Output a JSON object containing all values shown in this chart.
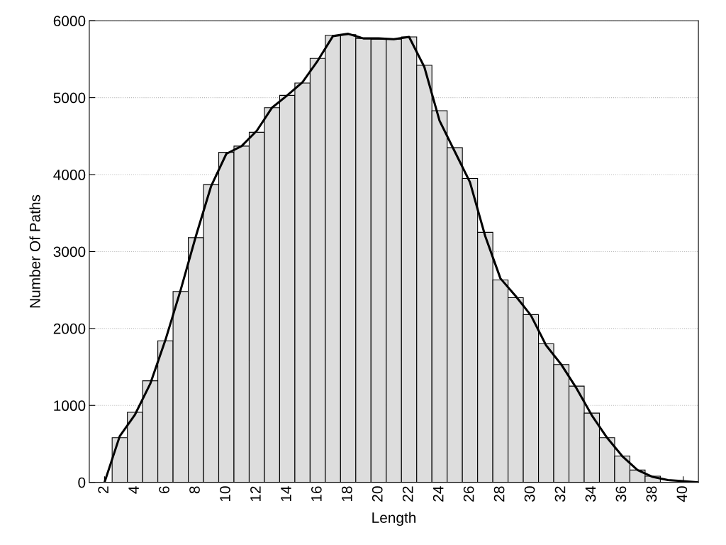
{
  "chart_data": {
    "type": "histogram",
    "xlabel": "Length",
    "ylabel": "Number Of Paths",
    "bins": [
      2.5,
      3.5,
      4.5,
      5.5,
      6.5,
      7.5,
      8.5,
      9.5,
      10.5,
      11.5,
      12.5,
      13.5,
      14.5,
      15.5,
      16.5,
      17.5,
      18.5,
      19.5,
      20.5,
      21.5,
      22.5,
      23.5,
      24.5,
      25.5,
      26.5,
      27.5,
      28.5,
      29.5,
      30.5,
      31.5,
      32.5,
      33.5,
      34.5,
      35.5,
      36.5,
      37.5,
      38.5,
      39.5,
      40.5
    ],
    "values": [
      580,
      910,
      1320,
      1840,
      2480,
      3180,
      3870,
      4290,
      4370,
      4550,
      4870,
      5030,
      5190,
      5510,
      5810,
      5820,
      5770,
      5760,
      5760,
      5790,
      5420,
      4830,
      4350,
      3950,
      3250,
      2630,
      2400,
      2180,
      1800,
      1530,
      1250,
      900,
      580,
      340,
      160,
      80,
      null,
      null
    ],
    "color": "#dddddd",
    "series": [
      {
        "type": "line",
        "color": "#000000",
        "x": [
          2,
          3,
          4,
          5,
          6,
          7,
          8,
          9,
          10,
          11,
          12,
          13,
          14,
          15,
          16,
          17,
          18,
          19,
          20,
          21,
          22,
          23,
          24,
          25,
          26,
          27,
          28,
          29,
          30,
          31,
          32,
          33,
          34,
          35,
          36,
          37,
          38,
          39,
          40,
          41
        ],
        "values": [
          0,
          600,
          880,
          1280,
          1850,
          2500,
          3200,
          3850,
          4270,
          4370,
          4570,
          4870,
          5030,
          5200,
          5480,
          5800,
          5830,
          5770,
          5770,
          5760,
          5790,
          5400,
          4700,
          4300,
          3900,
          3200,
          2650,
          2420,
          2170,
          1780,
          1530,
          1220,
          870,
          580,
          340,
          160,
          70,
          30,
          15,
          0
        ]
      }
    ],
    "xlim": [
      1,
      41
    ],
    "xticks": [
      2,
      4,
      6,
      8,
      10,
      12,
      14,
      16,
      18,
      20,
      22,
      24,
      26,
      28,
      30,
      32,
      34,
      36,
      38,
      40
    ],
    "ylim": [
      0,
      6000
    ],
    "yticks": [
      0,
      1000,
      2000,
      3000,
      4000,
      5000,
      6000
    ],
    "grid": "y",
    "legend": false
  }
}
